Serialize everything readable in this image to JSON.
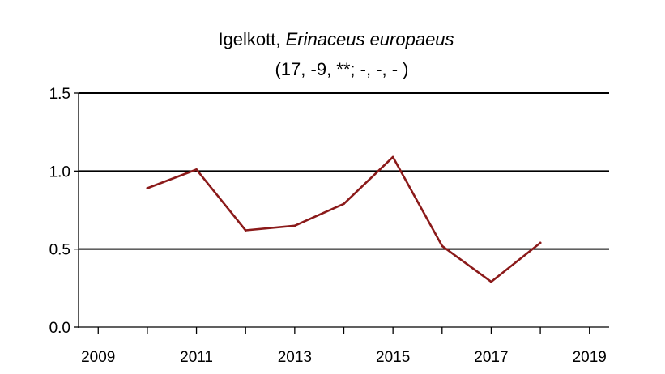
{
  "chart_data": {
    "type": "line",
    "title_plain": "Igelkott,",
    "title_italic": "Erinaceus europaeus",
    "subtitle": "(17, -9, **; -, -, - )",
    "xlabel": "",
    "ylabel": "",
    "xlim": [
      2008.6,
      2019.4
    ],
    "ylim": [
      0,
      1.5
    ],
    "x_ticks": [
      2009,
      2010,
      2011,
      2012,
      2013,
      2014,
      2015,
      2016,
      2017,
      2018,
      2019
    ],
    "x_tick_labels": [
      {
        "year": 2009,
        "label": "2009"
      },
      {
        "year": 2011,
        "label": "2011"
      },
      {
        "year": 2013,
        "label": "2013"
      },
      {
        "year": 2015,
        "label": "2015"
      },
      {
        "year": 2017,
        "label": "2017"
      },
      {
        "year": 2019,
        "label": "2019"
      }
    ],
    "y_ticks": [
      {
        "value": 0.0,
        "label": "0.0"
      },
      {
        "value": 0.5,
        "label": "0.5"
      },
      {
        "value": 1.0,
        "label": "1.0"
      },
      {
        "value": 1.5,
        "label": "1.5"
      }
    ],
    "gridlines_y": [
      0.5,
      1.0,
      1.5
    ],
    "line_color": "#8b1a1a",
    "series": [
      {
        "name": "Igelkott",
        "x": [
          2010,
          2011,
          2012,
          2013,
          2014,
          2015,
          2016,
          2017,
          2018
        ],
        "y": [
          0.89,
          1.01,
          0.62,
          0.65,
          0.79,
          1.09,
          0.52,
          0.29,
          0.54
        ]
      }
    ]
  }
}
